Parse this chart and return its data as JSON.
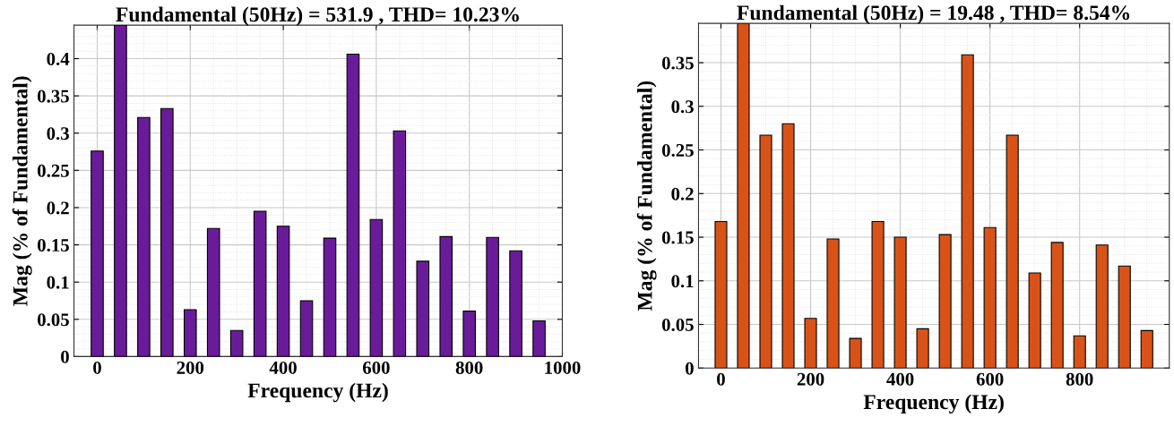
{
  "chart_data": [
    {
      "type": "bar",
      "title": "Fundamental (50Hz) = 531.9 , THD= 10.23%",
      "xlabel": "Frequency (Hz)",
      "ylabel": "Mag (% of Fundamental)",
      "x": [
        0,
        50,
        100,
        150,
        200,
        250,
        300,
        350,
        400,
        450,
        500,
        550,
        600,
        650,
        700,
        750,
        800,
        850,
        900,
        950
      ],
      "series": [
        {
          "color": "#6a1b9a",
          "values": [
            0.276,
            0.445,
            0.321,
            0.333,
            0.063,
            0.172,
            0.035,
            0.195,
            0.175,
            0.075,
            0.159,
            0.406,
            0.184,
            0.303,
            0.128,
            0.161,
            0.061,
            0.16,
            0.142,
            0.048
          ]
        }
      ],
      "xlim": [
        -50,
        1000
      ],
      "xticks": [
        0,
        200,
        400,
        600,
        800,
        1000
      ],
      "ylim": [
        0,
        0.445
      ],
      "yticks": [
        0,
        0.05,
        0.1,
        0.15,
        0.2,
        0.25,
        0.3,
        0.35,
        0.4
      ],
      "grid": true
    },
    {
      "type": "bar",
      "title": "Fundamental (50Hz) = 19.48 , THD= 8.54%",
      "xlabel": "Frequency (Hz)",
      "ylabel": "Mag (% of Fundamental)",
      "x": [
        0,
        50,
        100,
        150,
        200,
        250,
        300,
        350,
        400,
        450,
        500,
        550,
        600,
        650,
        700,
        750,
        800,
        850,
        900,
        950
      ],
      "series": [
        {
          "color": "#d95319",
          "values": [
            0.168,
            0.395,
            0.267,
            0.28,
            0.057,
            0.148,
            0.034,
            0.168,
            0.15,
            0.045,
            0.153,
            0.359,
            0.161,
            0.267,
            0.109,
            0.144,
            0.037,
            0.141,
            0.117,
            0.043
          ]
        }
      ],
      "xlim": [
        -50,
        1000
      ],
      "xticks": [
        0,
        200,
        400,
        600,
        800
      ],
      "ylim": [
        0,
        0.395
      ],
      "yticks": [
        0,
        0.05,
        0.1,
        0.15,
        0.2,
        0.25,
        0.3,
        0.35
      ],
      "grid": true
    }
  ]
}
